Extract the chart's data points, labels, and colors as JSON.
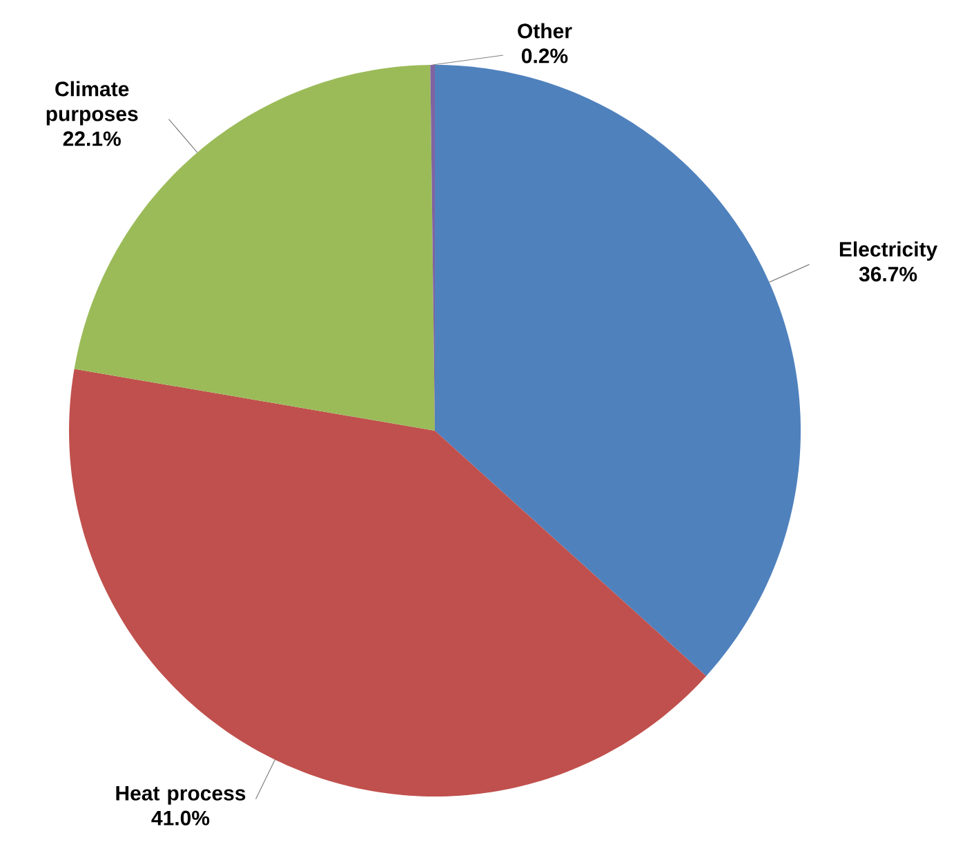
{
  "chart_data": {
    "type": "pie",
    "categories": [
      "Electricity",
      "Heat process",
      "Climate purposes",
      "Other"
    ],
    "values": [
      36.7,
      41.0,
      22.1,
      0.2
    ],
    "colors": [
      "#4f81bd",
      "#c0504d",
      "#9bbb59",
      "#8064a2"
    ],
    "data_labels": true,
    "value_labels": [
      "36.7%",
      "41.0%",
      "22.1%",
      "0.2%"
    ]
  }
}
